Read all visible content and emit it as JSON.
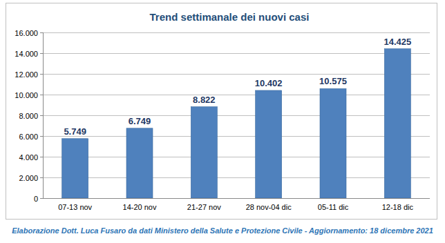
{
  "chart_data": {
    "type": "bar",
    "title": "Trend settimanale dei nuovi casi",
    "annotations": [
      "Elaborazione Dott. Luca Fusaro da dati Ministero della Salute e Protezione Civile - Aggiornamento: 18 dicembre 2021"
    ],
    "categories": [
      "07-13 nov",
      "14-20 nov",
      "21-27 nov",
      "28 nov-04 dic",
      "05-11 dic",
      "12-18 dic"
    ],
    "values": [
      5749,
      6749,
      8822,
      10402,
      10575,
      14425
    ],
    "value_labels": [
      "5.749",
      "6.749",
      "8.822",
      "10.402",
      "10.575",
      "14.425"
    ],
    "color": "#4f81bd",
    "data_labels": true,
    "grid": true,
    "ylim": [
      0,
      16000
    ],
    "yticks": [
      0,
      {
        "value": 2000,
        "label": "2.000"
      },
      {
        "value": 4000,
        "label": "4.000"
      },
      {
        "value": 6000,
        "label": "6.000"
      },
      {
        "value": 8000,
        "label": "8.000"
      },
      {
        "value": 10000,
        "label": "10.000"
      },
      {
        "value": 12000,
        "label": "12.000"
      },
      {
        "value": 14000,
        "label": "14.000"
      },
      {
        "value": 16000,
        "label": "16.000"
      }
    ]
  }
}
